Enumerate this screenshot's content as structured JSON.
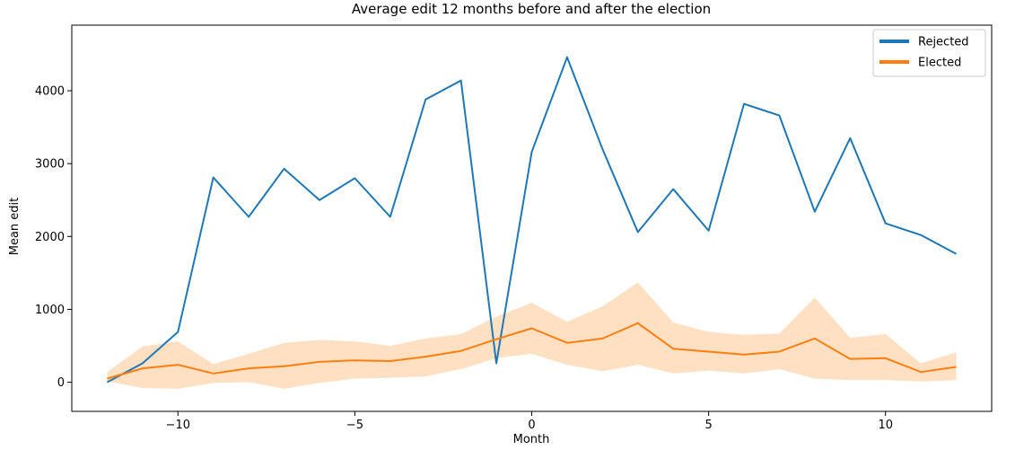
{
  "chart_data": {
    "type": "line",
    "title": "Average edit 12 months before and after the election",
    "xlabel": "Month",
    "ylabel": "Mean edit",
    "xlim": [
      -13,
      13
    ],
    "ylim": [
      -400,
      4900
    ],
    "xticks": [
      -10,
      -5,
      0,
      5,
      10
    ],
    "xtick_labels": [
      "−10",
      "−5",
      "0",
      "5",
      "10"
    ],
    "yticks": [
      0,
      1000,
      2000,
      3000,
      4000
    ],
    "ytick_labels": [
      "0",
      "1000",
      "2000",
      "3000",
      "4000"
    ],
    "grid": false,
    "legend_position": "top-right",
    "x": [
      -12,
      -11,
      -10,
      -9,
      -8,
      -7,
      -6,
      -5,
      -4,
      -3,
      -2,
      -1,
      0,
      1,
      2,
      3,
      4,
      5,
      6,
      7,
      8,
      9,
      10,
      11,
      12
    ],
    "series": [
      {
        "name": "Rejected",
        "color": "#1f77b4",
        "values": [
          0,
          260,
          690,
          2810,
          2270,
          2930,
          2500,
          2800,
          2270,
          3880,
          4140,
          260,
          3160,
          4460,
          3200,
          2060,
          2650,
          2080,
          3820,
          3660,
          2340,
          3350,
          2180,
          2020,
          1760
        ]
      },
      {
        "name": "Elected",
        "color": "#ff7f0e",
        "band_color": "#ffcc99",
        "values": [
          50,
          190,
          240,
          120,
          190,
          220,
          280,
          300,
          290,
          350,
          430,
          590,
          740,
          540,
          600,
          810,
          460,
          420,
          380,
          420,
          600,
          320,
          330,
          140,
          210
        ],
        "lower": [
          10,
          -80,
          -90,
          -10,
          0,
          -90,
          -10,
          50,
          60,
          80,
          180,
          330,
          390,
          240,
          150,
          240,
          120,
          160,
          120,
          180,
          50,
          30,
          30,
          10,
          30
        ],
        "upper": [
          140,
          490,
          560,
          250,
          390,
          540,
          580,
          560,
          500,
          600,
          660,
          900,
          1090,
          830,
          1040,
          1370,
          820,
          690,
          650,
          670,
          1160,
          610,
          660,
          260,
          410
        ]
      }
    ]
  }
}
